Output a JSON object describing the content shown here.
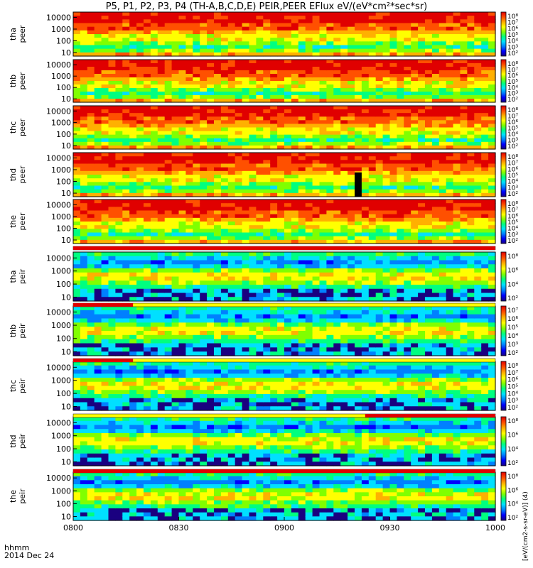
{
  "title": "P5, P1, P2, P3, P4 (TH-A,B,C,D,E) PEIR,PEER EFlux eV/(eV*cm²*sec*sr)",
  "x_axis": {
    "unit_label": "hhmm",
    "date_label": "2014 Dec 24"
  },
  "colorbar_caption": "[eV/(cm2-s-sr-eV)] (4)",
  "chart_data": {
    "type": "heatmap",
    "x_ticks": [
      "0800",
      "0830",
      "0900",
      "0930",
      "1000"
    ],
    "x_range": [
      "08:00",
      "10:00"
    ],
    "y_scale": "log",
    "y_ticks": [
      10,
      100,
      1000,
      10000
    ],
    "y_tick_labels": [
      "10",
      "100",
      "1000",
      "10000"
    ],
    "panels": [
      {
        "id": "tha-peer",
        "label1": "tha",
        "label2": "peer",
        "colorbar_labels": [
          "10⁸",
          "10⁷",
          "10⁶",
          "10⁵",
          "10⁴",
          "10³",
          "10²"
        ]
      },
      {
        "id": "thb-peer",
        "label1": "thb",
        "label2": "peer",
        "colorbar_labels": [
          "10⁸",
          "10⁷",
          "10⁶",
          "10⁵",
          "10⁴",
          "10³",
          "10²"
        ]
      },
      {
        "id": "thc-peer",
        "label1": "thc",
        "label2": "peer",
        "colorbar_labels": [
          "10⁸",
          "10⁷",
          "10⁶",
          "10⁵",
          "10⁴",
          "10³",
          "10²"
        ]
      },
      {
        "id": "thd-peer",
        "label1": "thd",
        "label2": "peer",
        "colorbar_labels": [
          "10⁸",
          "10⁷",
          "10⁶",
          "10⁵",
          "10⁴",
          "10³",
          "10²"
        ]
      },
      {
        "id": "the-peer",
        "label1": "the",
        "label2": "peer",
        "colorbar_labels": [
          "10⁸",
          "10⁷",
          "10⁶",
          "10⁵",
          "10⁴",
          "10³",
          "10²"
        ]
      },
      {
        "id": "tha-peir",
        "label1": "tha",
        "label2": "peir",
        "colorbar_labels": [
          "10⁸",
          "10⁶",
          "10⁴",
          "10²"
        ]
      },
      {
        "id": "thb-peir",
        "label1": "thb",
        "label2": "peir",
        "colorbar_labels": [
          "10⁷",
          "10⁶",
          "10⁵",
          "10⁴",
          "10³",
          "10²"
        ]
      },
      {
        "id": "thc-peir",
        "label1": "thc",
        "label2": "peir",
        "colorbar_labels": [
          "10⁸",
          "10⁷",
          "10⁶",
          "10⁵",
          "10⁴",
          "10³",
          "10²"
        ]
      },
      {
        "id": "thd-peir",
        "label1": "thd",
        "label2": "peir",
        "colorbar_labels": [
          "10⁸",
          "10⁶",
          "10⁴",
          "10²"
        ]
      },
      {
        "id": "the-peir",
        "label1": "the",
        "label2": "peir",
        "colorbar_labels": [
          "10⁸",
          "10⁶",
          "10⁴",
          "10²"
        ]
      }
    ],
    "mode_bars": [
      {
        "after_panel": "the-peer",
        "color": "#e00000",
        "x_from": "08:00",
        "x_to": "10:00"
      },
      {
        "after_panel": "tha-peir",
        "color": "#e00000",
        "x_from": "08:00",
        "x_to": "08:17"
      },
      {
        "after_panel": "thb-peir",
        "color": "#e00000",
        "x_from": "08:00",
        "x_to": "08:17"
      },
      {
        "after_panel": "thc-peir",
        "color": "#e00000",
        "x_from": "09:23",
        "x_to": "10:00"
      },
      {
        "after_panel": "thd-peir",
        "color": "#e00000",
        "x_from": "08:00",
        "x_to": "10:00"
      }
    ],
    "data_gap": {
      "panel": "thd-peer",
      "x_from": "09:20",
      "x_to": "09:22"
    },
    "colormap": [
      "#1a0080",
      "#0000ff",
      "#0080ff",
      "#00e0ff",
      "#00ff80",
      "#80ff00",
      "#ffff00",
      "#ffb000",
      "#ff5000",
      "#e00000"
    ]
  }
}
